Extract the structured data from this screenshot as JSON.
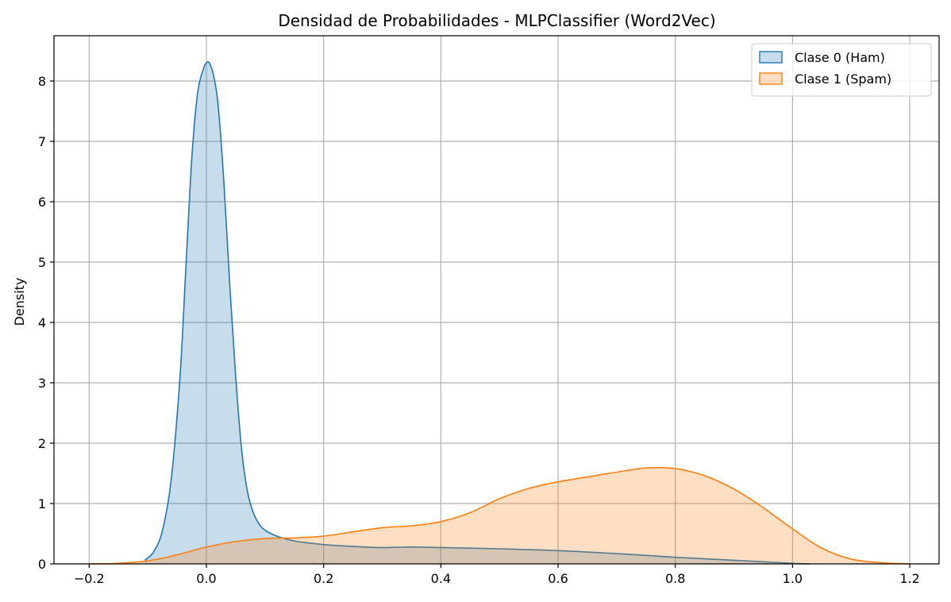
{
  "chart_data": {
    "type": "area",
    "title": "Densidad de Probabilidades - MLPClassifier (Word2Vec)",
    "xlabel": "",
    "ylabel": "Density",
    "xlim": [
      -0.26,
      1.25
    ],
    "ylim": [
      0,
      8.75
    ],
    "xticks": [
      -0.2,
      0.0,
      0.2,
      0.4,
      0.6,
      0.8,
      1.0,
      1.2
    ],
    "xtick_labels": [
      "−0.2",
      "0.0",
      "0.2",
      "0.4",
      "0.6",
      "0.8",
      "1.0",
      "1.2"
    ],
    "yticks": [
      0,
      1,
      2,
      3,
      4,
      5,
      6,
      7,
      8
    ],
    "ytick_labels": [
      "0",
      "1",
      "2",
      "3",
      "4",
      "5",
      "6",
      "7",
      "8"
    ],
    "grid": true,
    "legend_position": "top-right",
    "series": [
      {
        "name": "Clase 0 (Ham)",
        "color": "#1f77b4",
        "fill": "#1f77b4",
        "fill_opacity": 0.25,
        "x": [
          -0.105,
          -0.09,
          -0.075,
          -0.06,
          -0.045,
          -0.035,
          -0.025,
          -0.015,
          -0.005,
          0.0,
          0.005,
          0.012,
          0.02,
          0.03,
          0.04,
          0.05,
          0.06,
          0.07,
          0.08,
          0.09,
          0.1,
          0.12,
          0.15,
          0.2,
          0.25,
          0.3,
          0.35,
          0.4,
          0.5,
          0.6,
          0.7,
          0.8,
          0.9,
          1.0,
          1.03
        ],
        "y": [
          0.06,
          0.2,
          0.55,
          1.4,
          3.1,
          4.9,
          6.7,
          7.8,
          8.2,
          8.3,
          8.3,
          8.1,
          7.6,
          6.3,
          4.6,
          3.1,
          1.9,
          1.2,
          0.85,
          0.66,
          0.56,
          0.46,
          0.38,
          0.32,
          0.29,
          0.27,
          0.28,
          0.27,
          0.25,
          0.22,
          0.17,
          0.11,
          0.06,
          0.01,
          0.0
        ]
      },
      {
        "name": "Clase 1 (Spam)",
        "color": "#ff7f0e",
        "fill": "#ff7f0e",
        "fill_opacity": 0.25,
        "x": [
          -0.2,
          -0.15,
          -0.1,
          -0.05,
          0.0,
          0.05,
          0.1,
          0.15,
          0.2,
          0.25,
          0.3,
          0.35,
          0.4,
          0.45,
          0.5,
          0.55,
          0.6,
          0.65,
          0.7,
          0.75,
          0.8,
          0.85,
          0.9,
          0.95,
          1.0,
          1.05,
          1.1,
          1.15,
          1.2
        ],
        "y": [
          0.0,
          0.01,
          0.05,
          0.15,
          0.28,
          0.37,
          0.42,
          0.43,
          0.46,
          0.53,
          0.6,
          0.63,
          0.7,
          0.85,
          1.08,
          1.25,
          1.36,
          1.44,
          1.52,
          1.59,
          1.58,
          1.46,
          1.24,
          0.93,
          0.58,
          0.26,
          0.08,
          0.02,
          0.0
        ]
      }
    ]
  }
}
